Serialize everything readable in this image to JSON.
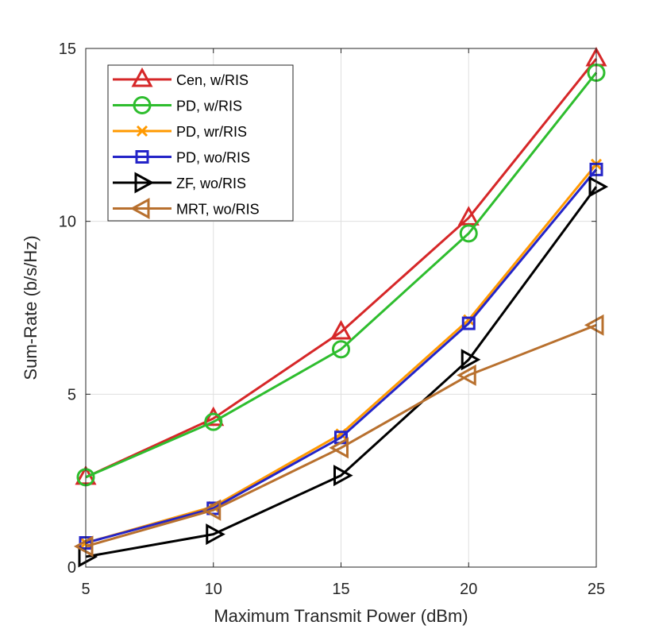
{
  "chart_data": {
    "type": "line",
    "title": "",
    "xlabel": "Maximum Transmit Power (dBm)",
    "ylabel": "Sum-Rate (b/s/Hz)",
    "x": [
      5,
      10,
      15,
      20,
      25
    ],
    "xlim": [
      5,
      25
    ],
    "ylim": [
      0,
      15
    ],
    "xticks": [
      5,
      10,
      15,
      20,
      25
    ],
    "yticks": [
      0,
      5,
      10,
      15
    ],
    "xtick_labels": [
      "5",
      "10",
      "15",
      "20",
      "25"
    ],
    "ytick_labels": [
      "0",
      "5",
      "10",
      "15"
    ],
    "grid": true,
    "legend_position": "top-left",
    "series": [
      {
        "name": "Cen, w/RIS",
        "color": "#d62728",
        "marker": "triangle-up",
        "values": [
          2.6,
          4.3,
          6.8,
          10.1,
          14.7
        ]
      },
      {
        "name": "PD, w/RIS",
        "color": "#2ebd2e",
        "marker": "circle",
        "values": [
          2.6,
          4.2,
          6.3,
          9.65,
          14.3
        ]
      },
      {
        "name": "PD, wr/RIS",
        "color": "#ff9900",
        "marker": "x",
        "values": [
          0.7,
          1.75,
          3.85,
          7.15,
          11.65
        ]
      },
      {
        "name": "PD, wo/RIS",
        "color": "#2424c8",
        "marker": "square",
        "values": [
          0.7,
          1.7,
          3.75,
          7.05,
          11.5
        ]
      },
      {
        "name": "ZF, wo/RIS",
        "color": "#000000",
        "marker": "triangle-right",
        "values": [
          0.3,
          0.95,
          2.65,
          6.0,
          11.0
        ]
      },
      {
        "name": "MRT, wo/RIS",
        "color": "#b8702e",
        "marker": "triangle-left",
        "values": [
          0.6,
          1.65,
          3.45,
          5.55,
          7.0
        ]
      }
    ]
  }
}
